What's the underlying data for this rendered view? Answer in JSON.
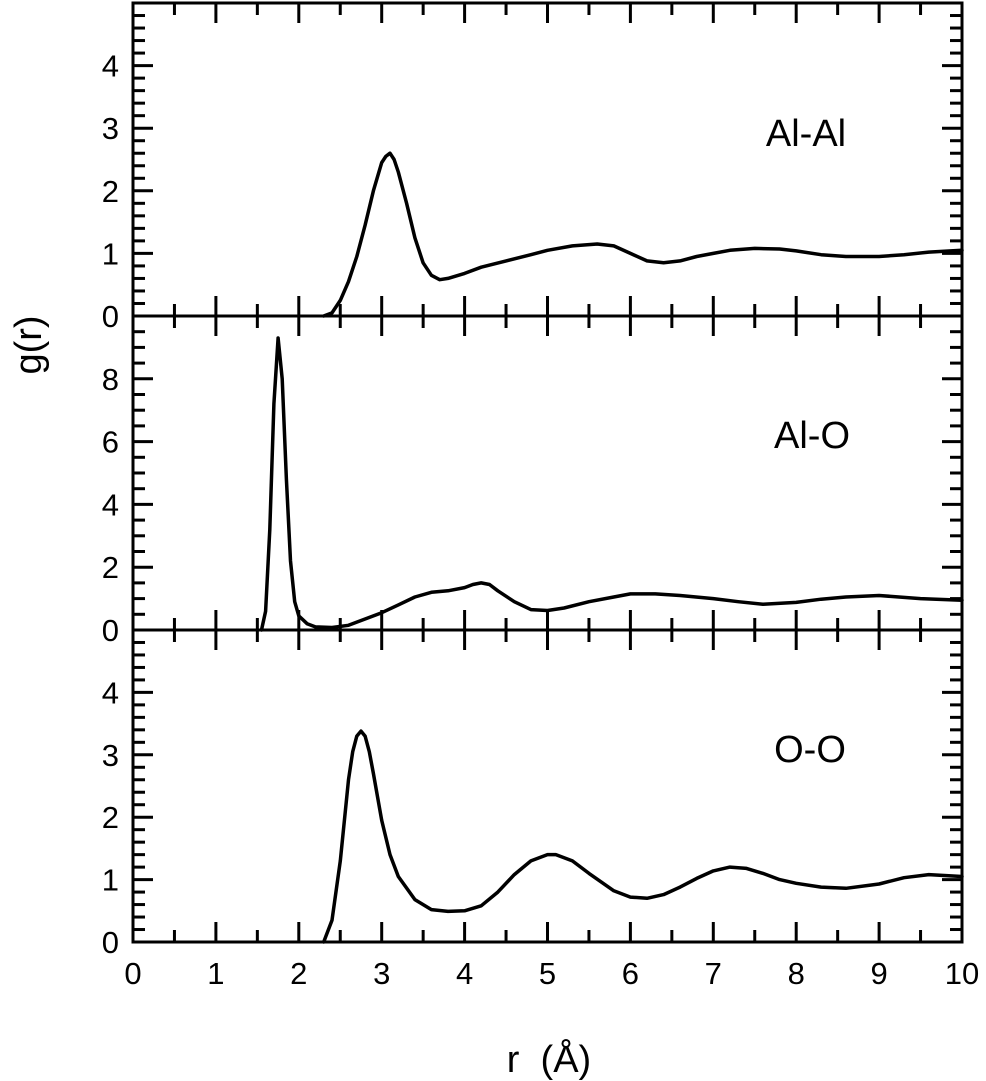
{
  "chart_data": {
    "type": "line",
    "layout": "three vertically stacked panels sharing the x axis",
    "title": "",
    "xlabel": "r  (Å)",
    "ylabel": "g(r)",
    "xlim": [
      0,
      10
    ],
    "x_ticks": [
      "0",
      "1",
      "2",
      "3",
      "4",
      "5",
      "6",
      "7",
      "8",
      "9",
      "10"
    ],
    "grid": false,
    "legend": "none",
    "line_color": "#000000",
    "panels": [
      {
        "label": "Al-Al",
        "ylim": [
          0,
          5
        ],
        "y_ticks": [
          "0",
          "1",
          "2",
          "3",
          "4"
        ],
        "series": [
          {
            "x": [
              2.3,
              2.4,
              2.5,
              2.6,
              2.7,
              2.8,
              2.9,
              3.0,
              3.05,
              3.1,
              3.15,
              3.2,
              3.3,
              3.4,
              3.5,
              3.6,
              3.7,
              3.8,
              4.0,
              4.2,
              4.5,
              4.8,
              5.0,
              5.3,
              5.6,
              5.8,
              6.0,
              6.2,
              6.4,
              6.6,
              6.8,
              7.0,
              7.2,
              7.5,
              7.8,
              8.0,
              8.3,
              8.6,
              9.0,
              9.3,
              9.6,
              10.0
            ],
            "y": [
              0.0,
              0.05,
              0.25,
              0.55,
              0.95,
              1.45,
              2.0,
              2.45,
              2.55,
              2.6,
              2.5,
              2.3,
              1.8,
              1.25,
              0.85,
              0.65,
              0.58,
              0.6,
              0.68,
              0.78,
              0.88,
              0.98,
              1.05,
              1.12,
              1.15,
              1.12,
              1.0,
              0.88,
              0.85,
              0.88,
              0.95,
              1.0,
              1.05,
              1.08,
              1.07,
              1.04,
              0.98,
              0.95,
              0.95,
              0.98,
              1.02,
              1.05
            ]
          }
        ]
      },
      {
        "label": "Al-O",
        "ylim": [
          0,
          10
        ],
        "y_ticks": [
          "0",
          "2",
          "4",
          "6",
          "8"
        ],
        "series": [
          {
            "x": [
              1.55,
              1.6,
              1.65,
              1.7,
              1.75,
              1.8,
              1.85,
              1.9,
              1.95,
              2.0,
              2.1,
              2.2,
              2.4,
              2.6,
              2.8,
              3.0,
              3.2,
              3.4,
              3.6,
              3.8,
              4.0,
              4.1,
              4.2,
              4.3,
              4.4,
              4.6,
              4.8,
              5.0,
              5.2,
              5.5,
              5.8,
              6.0,
              6.3,
              6.6,
              7.0,
              7.3,
              7.6,
              8.0,
              8.3,
              8.6,
              9.0,
              9.5,
              10.0
            ],
            "y": [
              0.0,
              0.6,
              3.2,
              7.2,
              9.3,
              8.0,
              4.8,
              2.2,
              0.9,
              0.45,
              0.2,
              0.1,
              0.08,
              0.15,
              0.35,
              0.55,
              0.8,
              1.05,
              1.2,
              1.25,
              1.35,
              1.45,
              1.5,
              1.45,
              1.25,
              0.9,
              0.65,
              0.62,
              0.7,
              0.9,
              1.05,
              1.15,
              1.15,
              1.1,
              1.0,
              0.9,
              0.82,
              0.88,
              0.98,
              1.05,
              1.1,
              1.0,
              0.95
            ]
          }
        ]
      },
      {
        "label": "O-O",
        "ylim": [
          0,
          5
        ],
        "y_ticks": [
          "0",
          "1",
          "2",
          "3",
          "4"
        ],
        "series": [
          {
            "x": [
              2.3,
              2.4,
              2.5,
              2.6,
              2.65,
              2.7,
              2.75,
              2.8,
              2.85,
              2.9,
              3.0,
              3.1,
              3.2,
              3.4,
              3.6,
              3.8,
              4.0,
              4.2,
              4.4,
              4.6,
              4.8,
              5.0,
              5.1,
              5.3,
              5.5,
              5.8,
              6.0,
              6.2,
              6.4,
              6.6,
              6.8,
              7.0,
              7.2,
              7.4,
              7.6,
              7.8,
              8.0,
              8.3,
              8.6,
              9.0,
              9.3,
              9.6,
              10.0
            ],
            "y": [
              0.0,
              0.35,
              1.3,
              2.6,
              3.05,
              3.3,
              3.38,
              3.3,
              3.05,
              2.7,
              1.95,
              1.4,
              1.05,
              0.68,
              0.52,
              0.49,
              0.5,
              0.58,
              0.8,
              1.08,
              1.3,
              1.4,
              1.4,
              1.3,
              1.1,
              0.82,
              0.72,
              0.7,
              0.76,
              0.88,
              1.02,
              1.14,
              1.2,
              1.18,
              1.1,
              1.0,
              0.94,
              0.88,
              0.86,
              0.93,
              1.03,
              1.08,
              1.05
            ]
          }
        ]
      }
    ]
  }
}
